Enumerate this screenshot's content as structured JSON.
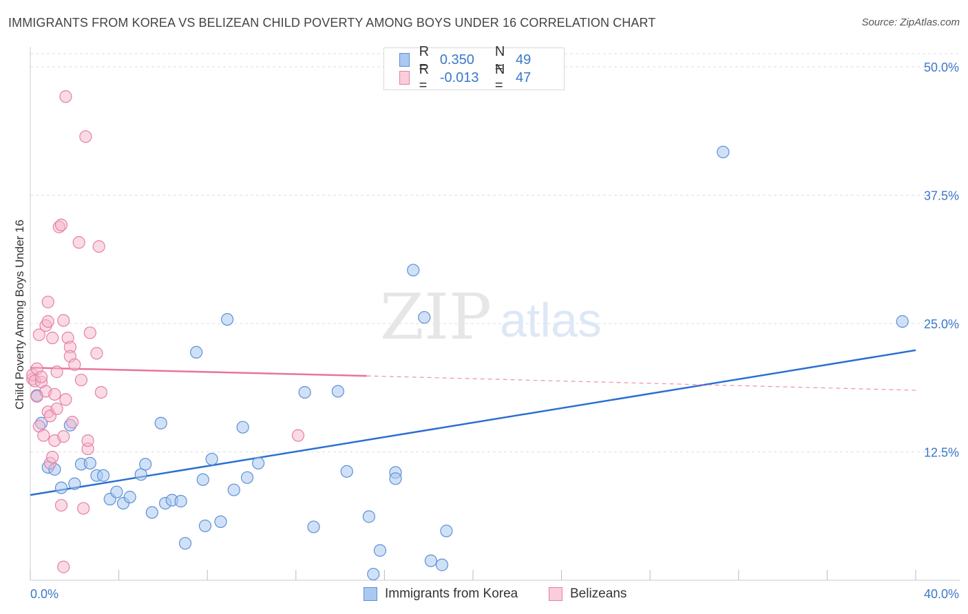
{
  "title": "IMMIGRANTS FROM KOREA VS BELIZEAN CHILD POVERTY AMONG BOYS UNDER 16 CORRELATION CHART",
  "source": "Source: ZipAtlas.com",
  "watermark": {
    "zip": "ZIP",
    "atlas": "atlas"
  },
  "legend": {
    "rows": [
      {
        "r_label": "R =",
        "r_value": "0.350",
        "n_label": "N =",
        "n_value": "49"
      },
      {
        "r_label": "R =",
        "r_value": "-0.013",
        "n_label": "N =",
        "n_value": "47"
      }
    ]
  },
  "bottom_legend": [
    "Immigrants from Korea",
    "Belizeans"
  ],
  "colors": {
    "blue_fill": "#aac8f0",
    "blue_stroke": "#5b8fd6",
    "blue_line": "#2a6fd1",
    "pink_fill": "#f5b8cc",
    "pink_stroke": "#e57fa3",
    "pink_line": "#e8739b",
    "axis_label": "#3a78c9",
    "grid": "#dddddd"
  },
  "chart_data": {
    "type": "scatter",
    "title": "IMMIGRANTS FROM KOREA VS BELIZEAN CHILD POVERTY AMONG BOYS UNDER 16 CORRELATION CHART",
    "xlabel": "",
    "ylabel": "Child Poverty Among Boys Under 16",
    "xlim": [
      0,
      40
    ],
    "ylim": [
      0,
      52
    ],
    "x_tick_labels": [
      "0.0%",
      "40.0%"
    ],
    "y_ticks": [
      12.5,
      25.0,
      37.5,
      50.0
    ],
    "y_tick_labels": [
      "12.5%",
      "25.0%",
      "37.5%",
      "50.0%"
    ],
    "grid": true,
    "legend_position": "top-center",
    "series": [
      {
        "name": "Immigrants from Korea",
        "color": "#5b8fd6",
        "R": 0.35,
        "N": 49,
        "points": [
          [
            0.3,
            18.0
          ],
          [
            0.5,
            15.3
          ],
          [
            0.8,
            11.0
          ],
          [
            1.1,
            10.8
          ],
          [
            1.4,
            9.0
          ],
          [
            1.8,
            15.1
          ],
          [
            2.0,
            9.4
          ],
          [
            2.3,
            11.3
          ],
          [
            2.7,
            11.4
          ],
          [
            3.0,
            10.2
          ],
          [
            3.3,
            10.2
          ],
          [
            3.6,
            7.9
          ],
          [
            3.9,
            8.6
          ],
          [
            4.2,
            7.5
          ],
          [
            4.5,
            8.1
          ],
          [
            5.0,
            10.3
          ],
          [
            5.2,
            11.3
          ],
          [
            5.5,
            6.6
          ],
          [
            5.9,
            15.3
          ],
          [
            6.1,
            7.5
          ],
          [
            6.4,
            7.8
          ],
          [
            6.8,
            7.7
          ],
          [
            7.0,
            3.6
          ],
          [
            7.5,
            22.2
          ],
          [
            7.8,
            9.8
          ],
          [
            7.9,
            5.3
          ],
          [
            8.2,
            11.8
          ],
          [
            8.6,
            5.7
          ],
          [
            8.9,
            25.4
          ],
          [
            9.2,
            8.8
          ],
          [
            9.6,
            14.9
          ],
          [
            9.8,
            10.0
          ],
          [
            10.3,
            11.4
          ],
          [
            12.4,
            18.3
          ],
          [
            12.8,
            5.2
          ],
          [
            13.9,
            18.4
          ],
          [
            14.3,
            10.6
          ],
          [
            15.3,
            6.2
          ],
          [
            15.5,
            0.6
          ],
          [
            15.8,
            2.9
          ],
          [
            16.5,
            10.5
          ],
          [
            16.5,
            9.9
          ],
          [
            17.3,
            30.2
          ],
          [
            17.8,
            25.6
          ],
          [
            18.1,
            1.9
          ],
          [
            18.6,
            1.5
          ],
          [
            18.8,
            4.8
          ],
          [
            31.3,
            41.7
          ],
          [
            39.4,
            25.2
          ]
        ],
        "trend": {
          "x1": 0,
          "y1": 8.3,
          "x2": 40,
          "y2": 22.4
        }
      },
      {
        "name": "Belizeans",
        "color": "#e57fa3",
        "R": -0.013,
        "N": 47,
        "points": [
          [
            0.1,
            19.6
          ],
          [
            0.1,
            20.0
          ],
          [
            0.2,
            19.4
          ],
          [
            0.3,
            20.6
          ],
          [
            0.3,
            17.9
          ],
          [
            0.4,
            15.0
          ],
          [
            0.4,
            23.9
          ],
          [
            0.5,
            19.3
          ],
          [
            0.5,
            19.8
          ],
          [
            0.6,
            14.1
          ],
          [
            0.7,
            18.4
          ],
          [
            0.7,
            24.8
          ],
          [
            0.8,
            16.4
          ],
          [
            0.8,
            27.1
          ],
          [
            0.8,
            25.2
          ],
          [
            0.9,
            16.0
          ],
          [
            0.9,
            11.4
          ],
          [
            1.0,
            23.6
          ],
          [
            1.0,
            12.0
          ],
          [
            1.1,
            13.6
          ],
          [
            1.1,
            18.1
          ],
          [
            1.2,
            20.3
          ],
          [
            1.2,
            16.7
          ],
          [
            1.3,
            34.4
          ],
          [
            1.4,
            34.6
          ],
          [
            1.4,
            7.3
          ],
          [
            1.5,
            25.3
          ],
          [
            1.5,
            14.0
          ],
          [
            1.5,
            1.3
          ],
          [
            1.6,
            17.6
          ],
          [
            1.6,
            47.1
          ],
          [
            1.7,
            23.6
          ],
          [
            1.8,
            22.7
          ],
          [
            1.8,
            21.8
          ],
          [
            1.9,
            15.4
          ],
          [
            2.0,
            21.0
          ],
          [
            2.2,
            32.9
          ],
          [
            2.3,
            19.5
          ],
          [
            2.5,
            43.2
          ],
          [
            2.6,
            12.8
          ],
          [
            2.6,
            13.6
          ],
          [
            2.7,
            24.1
          ],
          [
            3.0,
            22.1
          ],
          [
            3.1,
            32.5
          ],
          [
            3.2,
            18.3
          ],
          [
            12.1,
            14.1
          ],
          [
            2.4,
            7.0
          ]
        ],
        "trend_solid": {
          "x1": 0,
          "y1": 20.7,
          "x2": 15.2,
          "y2": 19.9
        },
        "trend_dashed": {
          "x1": 15.2,
          "y1": 19.9,
          "x2": 40,
          "y2": 18.5
        }
      }
    ]
  }
}
